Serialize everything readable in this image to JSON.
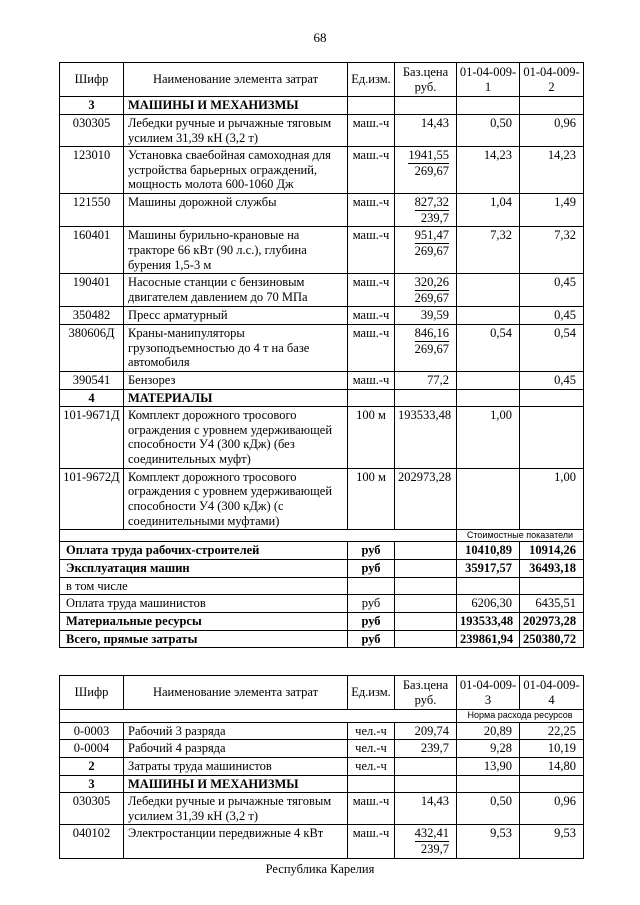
{
  "page": {
    "number": "68",
    "footer": "Республика Карелия"
  },
  "tables": [
    {
      "headers": [
        "Шифр",
        "Наименование элемента затрат",
        "Ед.изм.",
        "Баз.цена\nруб.",
        "01-04-009-1",
        "01-04-009-2"
      ],
      "rows": [
        {
          "type": "section",
          "code": "3",
          "name": "МАШИНЫ И МЕХАНИЗМЫ"
        },
        {
          "type": "item",
          "code": "030305",
          "name": "Лебедки ручные и рычажные тяговым усилием 31,39 кН (3,2 т)",
          "unit": "маш.-ч",
          "price": "14,43",
          "v1": "0,50",
          "v2": "0,96"
        },
        {
          "type": "item",
          "code": "123010",
          "name": "Установка сваебойная самоходная для устройства барьерных ограждений, мощность молота 600-1060 Дж",
          "unit": "маш.-ч",
          "price": "1941,55",
          "price2": "269,67",
          "v1": "14,23",
          "v2": "14,23"
        },
        {
          "type": "item",
          "code": "121550",
          "name": "Машины дорожной службы",
          "unit": "маш.-ч",
          "price": "827,32",
          "price2": "239,7",
          "v1": "1,04",
          "v2": "1,49"
        },
        {
          "type": "item",
          "code": "160401",
          "name": "Машины бурильно-крановые на тракторе 66 кВт (90 л.с.), глубина бурения 1,5-3 м",
          "unit": "маш.-ч",
          "price": "951,47",
          "price2": "269,67",
          "v1": "7,32",
          "v2": "7,32"
        },
        {
          "type": "item",
          "code": "190401",
          "name": "Насосные станции с бензиновым двигателем давлением до 70 МПа",
          "unit": "маш.-ч",
          "price": "320,26",
          "price2": "269,67",
          "v1": "",
          "v2": "0,45"
        },
        {
          "type": "item",
          "code": "350482",
          "name": "Пресс арматурный",
          "unit": "маш.-ч",
          "price": "39,59",
          "v1": "",
          "v2": "0,45"
        },
        {
          "type": "item",
          "code": "380606Д",
          "name": "Краны-манипуляторы грузоподъемностью до 4 т на базе автомобиля",
          "unit": "маш.-ч",
          "price": "846,16",
          "price2": "269,67",
          "v1": "0,54",
          "v2": "0,54"
        },
        {
          "type": "item",
          "code": "390541",
          "name": "Бензорез",
          "unit": "маш.-ч",
          "price": "77,2",
          "v1": "",
          "v2": "0,45"
        },
        {
          "type": "section",
          "code": "4",
          "name": "МАТЕРИАЛЫ"
        },
        {
          "type": "item",
          "code": "101-9671Д",
          "name": "Комплект дорожного тросового ограждения с уровнем удерживающей способности У4 (300 кДж) (без соединительных муфт)",
          "unit": "100 м",
          "price": "193533,48",
          "v1": "1,00",
          "v2": ""
        },
        {
          "type": "item",
          "code": "101-9672Д",
          "name": "Комплект дорожного тросового ограждения с уровнем удерживающей способности У4 (300 кДж) (с соединительными муфтами)",
          "unit": "100 м",
          "price": "202973,28",
          "v1": "",
          "v2": "1,00"
        },
        {
          "type": "subheader",
          "label": "Стоимостные показатели"
        },
        {
          "type": "summary",
          "bold": true,
          "name": "Оплата труда рабочих-строителей",
          "unit": "руб",
          "v1": "10410,89",
          "v2": "10914,26"
        },
        {
          "type": "summary",
          "bold": true,
          "name": "Эксплуатация машин",
          "unit": "руб",
          "v1": "35917,57",
          "v2": "36493,18"
        },
        {
          "type": "summary",
          "bold": false,
          "name": "в том числе",
          "unit": "",
          "v1": "",
          "v2": ""
        },
        {
          "type": "summary",
          "bold": false,
          "name": "Оплата труда машинистов",
          "unit": "руб",
          "v1": "6206,30",
          "v2": "6435,51"
        },
        {
          "type": "summary",
          "bold": true,
          "name": "Материальные ресурсы",
          "unit": "руб",
          "v1": "193533,48",
          "v2": "202973,28"
        },
        {
          "type": "summary",
          "bold": true,
          "name": "Всего, прямые затраты",
          "unit": "руб",
          "v1": "239861,94",
          "v2": "250380,72"
        }
      ]
    },
    {
      "headers": [
        "Шифр",
        "Наименование элемента затрат",
        "Ед.изм.",
        "Баз.цена\nруб.",
        "01-04-009-3",
        "01-04-009-4"
      ],
      "rows": [
        {
          "type": "subheader",
          "label": "Норма расхода ресурсов"
        },
        {
          "type": "item",
          "code": "0-0003",
          "name": "Рабочий 3 разряда",
          "unit": "чел.-ч",
          "price": "209,74",
          "v1": "20,89",
          "v2": "22,25"
        },
        {
          "type": "item",
          "code": "0-0004",
          "name": "Рабочий 4 разряда",
          "unit": "чел.-ч",
          "price": "239,7",
          "v1": "9,28",
          "v2": "10,19"
        },
        {
          "type": "item",
          "code": "2",
          "code_bold": true,
          "name": "Затраты труда машинистов",
          "unit": "чел.-ч",
          "price": "",
          "v1": "13,90",
          "v2": "14,80"
        },
        {
          "type": "section",
          "code": "3",
          "name": "МАШИНЫ И МЕХАНИЗМЫ"
        },
        {
          "type": "item",
          "code": "030305",
          "name": "Лебедки ручные и рычажные тяговым усилием 31,39 кН (3,2 т)",
          "unit": "маш.-ч",
          "price": "14,43",
          "v1": "0,50",
          "v2": "0,96"
        },
        {
          "type": "item",
          "code": "040102",
          "name": "Электростанции передвижные 4 кВт",
          "unit": "маш.-ч",
          "price": "432,41",
          "price2": "239,7",
          "v1": "9,53",
          "v2": "9,53"
        }
      ]
    }
  ]
}
